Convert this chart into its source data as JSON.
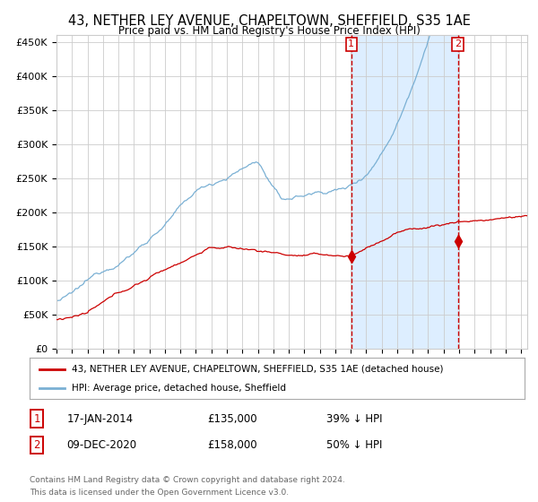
{
  "title": "43, NETHER LEY AVENUE, CHAPELTOWN, SHEFFIELD, S35 1AE",
  "subtitle": "Price paid vs. HM Land Registry's House Price Index (HPI)",
  "ylim": [
    0,
    460000
  ],
  "yticks": [
    0,
    50000,
    100000,
    150000,
    200000,
    250000,
    300000,
    350000,
    400000,
    450000
  ],
  "ytick_labels": [
    "£0",
    "£50K",
    "£100K",
    "£150K",
    "£200K",
    "£250K",
    "£300K",
    "£350K",
    "£400K",
    "£450K"
  ],
  "sale1_date": 2014.04,
  "sale1_price": 135000,
  "sale1_label": "17-JAN-2014",
  "sale1_note": "£135,000",
  "sale1_pct": "39% ↓ HPI",
  "sale2_date": 2020.92,
  "sale2_price": 158000,
  "sale2_label": "09-DEC-2020",
  "sale2_note": "£158,000",
  "sale2_pct": "50% ↓ HPI",
  "legend1": "43, NETHER LEY AVENUE, CHAPELTOWN, SHEFFIELD, S35 1AE (detached house)",
  "legend2": "HPI: Average price, detached house, Sheffield",
  "footer1": "Contains HM Land Registry data © Crown copyright and database right 2024.",
  "footer2": "This data is licensed under the Open Government Licence v3.0.",
  "line_color_red": "#cc0000",
  "line_color_blue": "#7ab0d4",
  "shade_color": "#ddeeff",
  "bg_color": "#ffffff",
  "grid_color": "#cccccc"
}
